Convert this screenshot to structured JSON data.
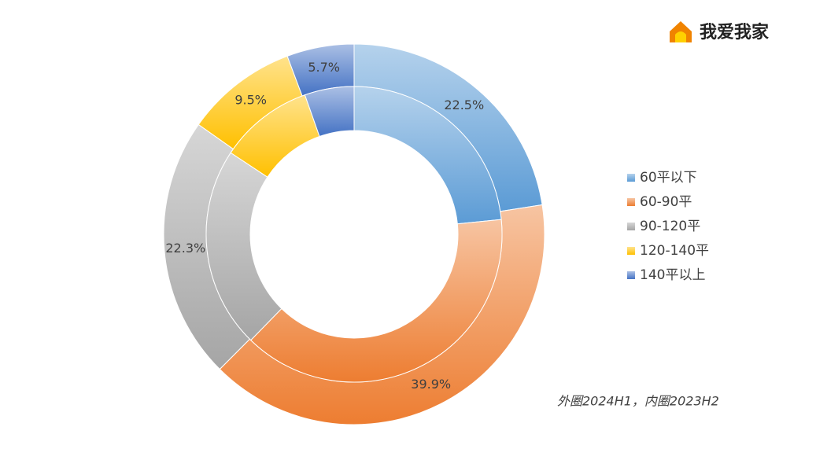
{
  "brand": "我爱我家",
  "chart_data": {
    "type": "donut",
    "categories": [
      "60平以下",
      "60-90平",
      "90-120平",
      "120-140平",
      "140平以上"
    ],
    "colors": [
      "#5b9bd5",
      "#ed7d31",
      "#a5a5a5",
      "#ffc000",
      "#4472c4"
    ],
    "series": [
      {
        "values": [
          22.5,
          39.9,
          22.3,
          9.5,
          5.7
        ],
        "value_labels": [
          "22.5%",
          "39.9%",
          "22.3%",
          "9.5%",
          "5.7%"
        ]
      },
      {
        "values": [
          23.4,
          38.9,
          22.0,
          10.3,
          5.4
        ]
      }
    ],
    "annotation": "外圈2024H1，内圈2023H2",
    "legend": "right"
  }
}
